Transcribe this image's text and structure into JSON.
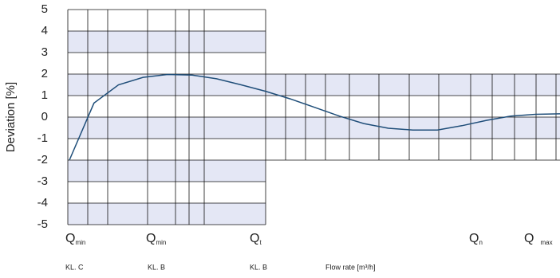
{
  "chart_data": {
    "type": "line",
    "y_label": "Deviation [%]",
    "x_label": "Flow rate [m³/h]",
    "flow_labels": [
      {
        "main": "Q",
        "sub": "min"
      },
      {
        "main": "Q",
        "sub": "min"
      },
      {
        "main": "Q",
        "sub": "t"
      },
      {
        "main": "Q",
        "sub": "n"
      },
      {
        "main": "Q",
        "sub": "max"
      }
    ],
    "class_labels": [
      "KL. C",
      "KL. B",
      "KL. B"
    ],
    "categories": [
      null,
      null,
      null,
      null,
      null,
      null,
      null,
      null,
      null,
      null,
      null,
      null,
      null,
      null,
      null,
      null,
      null,
      null,
      null,
      null,
      null
    ],
    "series": [
      {
        "color": "#1f4e79",
        "values": [
          -2,
          0.65,
          1.5,
          1.85,
          1.98,
          1.95,
          1.78,
          1.5,
          1.2,
          0.85,
          0.45,
          0.05,
          -0.3,
          -0.52,
          -0.6,
          -0.6,
          -0.4,
          -0.15,
          0.05,
          0.13,
          0.15
        ]
      }
    ],
    "ylim": [
      -5,
      5
    ],
    "yticks": [
      -5,
      -4,
      -3,
      -2,
      -1,
      0,
      1,
      2,
      3,
      4,
      5
    ],
    "grid": true,
    "band_color": "#e4e7f5"
  }
}
